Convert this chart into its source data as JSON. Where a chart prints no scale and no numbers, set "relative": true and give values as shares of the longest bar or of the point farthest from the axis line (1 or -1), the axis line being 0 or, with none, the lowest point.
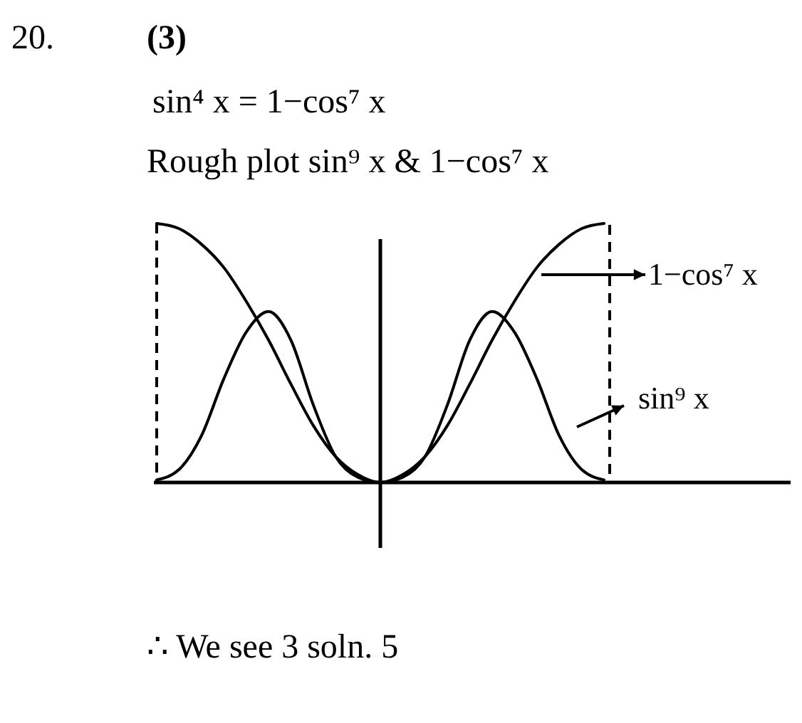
{
  "chart_data": {
    "type": "line",
    "relative": true,
    "title": "Rough plot sin⁹ x & 1−cos⁷ x",
    "annotations": [
      "20.",
      "(3)",
      "sin⁴ x = 1−cos⁷ x",
      "∴ We see 3 soln. 5"
    ],
    "categories": [
      null,
      null,
      null,
      null,
      null,
      null,
      null,
      null,
      null,
      null,
      null,
      null,
      null,
      null,
      null,
      null,
      null,
      null,
      null,
      null,
      null
    ],
    "series": [
      {
        "name": "1−cos⁷ x",
        "color": "#000000",
        "values": [
          1,
          0.98,
          0.92,
          0.83,
          0.7,
          0.55,
          0.38,
          0.22,
          0.1,
          0.03,
          0,
          0.03,
          0.1,
          0.22,
          0.38,
          0.55,
          0.7,
          0.83,
          0.92,
          0.98,
          1
        ]
      },
      {
        "name": "sin⁹ x",
        "color": "#000000",
        "values": [
          0.01,
          0.05,
          0.18,
          0.4,
          0.58,
          0.66,
          0.55,
          0.3,
          0.1,
          0.02,
          0,
          0.02,
          0.1,
          0.3,
          0.55,
          0.66,
          0.58,
          0.4,
          0.18,
          0.05,
          0.01
        ]
      }
    ],
    "legend": "right",
    "marker": "none",
    "line_style": "solid"
  }
}
